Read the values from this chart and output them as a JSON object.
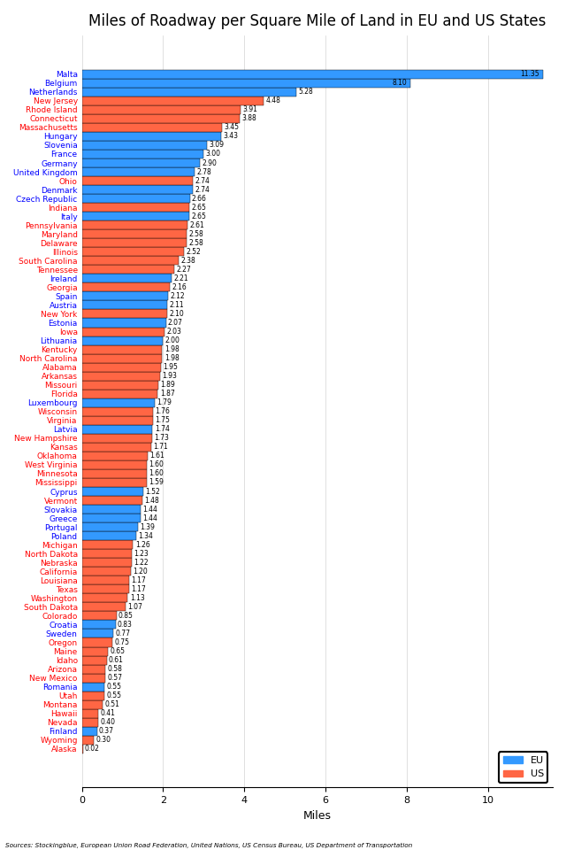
{
  "title": "Miles of Roadway per Square Mile of Land in EU and US States",
  "xlabel": "Miles",
  "source": "Sources: Stockingblue, European Union Road Federation, United Nations, US Census Bureau, US Department of Transportation",
  "entries": [
    {
      "name": "Malta",
      "value": 11.35,
      "type": "EU"
    },
    {
      "name": "Belgium",
      "value": 8.1,
      "type": "EU"
    },
    {
      "name": "Netherlands",
      "value": 5.28,
      "type": "EU"
    },
    {
      "name": "New Jersey",
      "value": 4.48,
      "type": "US"
    },
    {
      "name": "Rhode Island",
      "value": 3.91,
      "type": "US"
    },
    {
      "name": "Connecticut",
      "value": 3.88,
      "type": "US"
    },
    {
      "name": "Massachusetts",
      "value": 3.45,
      "type": "US"
    },
    {
      "name": "Hungary",
      "value": 3.43,
      "type": "EU"
    },
    {
      "name": "Slovenia",
      "value": 3.09,
      "type": "EU"
    },
    {
      "name": "France",
      "value": 3.0,
      "type": "EU"
    },
    {
      "name": "Germany",
      "value": 2.9,
      "type": "EU"
    },
    {
      "name": "United Kingdom",
      "value": 2.78,
      "type": "EU"
    },
    {
      "name": "Ohio",
      "value": 2.74,
      "type": "US"
    },
    {
      "name": "Denmark",
      "value": 2.74,
      "type": "EU"
    },
    {
      "name": "Czech Republic",
      "value": 2.66,
      "type": "EU"
    },
    {
      "name": "Indiana",
      "value": 2.65,
      "type": "US"
    },
    {
      "name": "Italy",
      "value": 2.65,
      "type": "EU"
    },
    {
      "name": "Pennsylvania",
      "value": 2.61,
      "type": "US"
    },
    {
      "name": "Maryland",
      "value": 2.58,
      "type": "US"
    },
    {
      "name": "Delaware",
      "value": 2.58,
      "type": "US"
    },
    {
      "name": "Illinois",
      "value": 2.52,
      "type": "US"
    },
    {
      "name": "South Carolina",
      "value": 2.38,
      "type": "US"
    },
    {
      "name": "Tennessee",
      "value": 2.27,
      "type": "US"
    },
    {
      "name": "Ireland",
      "value": 2.21,
      "type": "EU"
    },
    {
      "name": "Georgia",
      "value": 2.16,
      "type": "US"
    },
    {
      "name": "Spain",
      "value": 2.12,
      "type": "EU"
    },
    {
      "name": "Austria",
      "value": 2.11,
      "type": "EU"
    },
    {
      "name": "New York",
      "value": 2.1,
      "type": "US"
    },
    {
      "name": "Estonia",
      "value": 2.07,
      "type": "EU"
    },
    {
      "name": "Iowa",
      "value": 2.03,
      "type": "US"
    },
    {
      "name": "Lithuania",
      "value": 2.0,
      "type": "EU"
    },
    {
      "name": "Kentucky",
      "value": 1.98,
      "type": "US"
    },
    {
      "name": "North Carolina",
      "value": 1.98,
      "type": "US"
    },
    {
      "name": "Alabama",
      "value": 1.95,
      "type": "US"
    },
    {
      "name": "Arkansas",
      "value": 1.93,
      "type": "US"
    },
    {
      "name": "Missouri",
      "value": 1.89,
      "type": "US"
    },
    {
      "name": "Florida",
      "value": 1.87,
      "type": "US"
    },
    {
      "name": "Luxembourg",
      "value": 1.79,
      "type": "EU"
    },
    {
      "name": "Wisconsin",
      "value": 1.76,
      "type": "US"
    },
    {
      "name": "Virginia",
      "value": 1.75,
      "type": "US"
    },
    {
      "name": "Latvia",
      "value": 1.74,
      "type": "EU"
    },
    {
      "name": "New Hampshire",
      "value": 1.73,
      "type": "US"
    },
    {
      "name": "Kansas",
      "value": 1.71,
      "type": "US"
    },
    {
      "name": "Oklahoma",
      "value": 1.61,
      "type": "US"
    },
    {
      "name": "West Virginia",
      "value": 1.6,
      "type": "US"
    },
    {
      "name": "Minnesota",
      "value": 1.6,
      "type": "US"
    },
    {
      "name": "Mississippi",
      "value": 1.59,
      "type": "US"
    },
    {
      "name": "Cyprus",
      "value": 1.52,
      "type": "EU"
    },
    {
      "name": "Vermont",
      "value": 1.48,
      "type": "US"
    },
    {
      "name": "Slovakia",
      "value": 1.44,
      "type": "EU"
    },
    {
      "name": "Greece",
      "value": 1.44,
      "type": "EU"
    },
    {
      "name": "Portugal",
      "value": 1.39,
      "type": "EU"
    },
    {
      "name": "Poland",
      "value": 1.34,
      "type": "EU"
    },
    {
      "name": "Michigan",
      "value": 1.26,
      "type": "US"
    },
    {
      "name": "North Dakota",
      "value": 1.23,
      "type": "US"
    },
    {
      "name": "Nebraska",
      "value": 1.22,
      "type": "US"
    },
    {
      "name": "California",
      "value": 1.2,
      "type": "US"
    },
    {
      "name": "Louisiana",
      "value": 1.17,
      "type": "US"
    },
    {
      "name": "Texas",
      "value": 1.17,
      "type": "US"
    },
    {
      "name": "Washington",
      "value": 1.13,
      "type": "US"
    },
    {
      "name": "South Dakota",
      "value": 1.07,
      "type": "US"
    },
    {
      "name": "Colorado",
      "value": 0.85,
      "type": "US"
    },
    {
      "name": "Croatia",
      "value": 0.83,
      "type": "EU"
    },
    {
      "name": "Sweden",
      "value": 0.77,
      "type": "EU"
    },
    {
      "name": "Oregon",
      "value": 0.75,
      "type": "US"
    },
    {
      "name": "Maine",
      "value": 0.65,
      "type": "US"
    },
    {
      "name": "Idaho",
      "value": 0.61,
      "type": "US"
    },
    {
      "name": "Arizona",
      "value": 0.58,
      "type": "US"
    },
    {
      "name": "New Mexico",
      "value": 0.57,
      "type": "US"
    },
    {
      "name": "Romania",
      "value": 0.55,
      "type": "EU"
    },
    {
      "name": "Utah",
      "value": 0.55,
      "type": "US"
    },
    {
      "name": "Montana",
      "value": 0.51,
      "type": "US"
    },
    {
      "name": "Hawaii",
      "value": 0.41,
      "type": "US"
    },
    {
      "name": "Nevada",
      "value": 0.4,
      "type": "US"
    },
    {
      "name": "Finland",
      "value": 0.37,
      "type": "EU"
    },
    {
      "name": "Wyoming",
      "value": 0.3,
      "type": "US"
    },
    {
      "name": "Alaska",
      "value": 0.02,
      "type": "US"
    }
  ],
  "eu_color": "#3399ff",
  "us_color": "#ff6644",
  "xlim": [
    0,
    11.6
  ],
  "bar_height": 1.0,
  "title_fontsize": 12,
  "label_fontsize": 6.5,
  "tick_fontsize": 8,
  "value_fontsize": 5.5,
  "inside_label_threshold": 5.5,
  "eu_label_color": "blue",
  "us_label_color": "red"
}
